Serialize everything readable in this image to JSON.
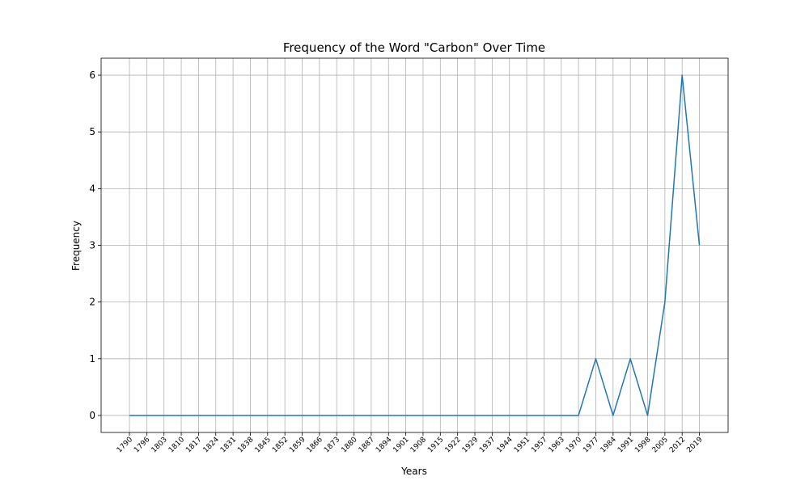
{
  "chart_data": {
    "type": "line",
    "title": "Frequency of the Word \"Carbon\" Over Time",
    "xlabel": "Years",
    "ylabel": "Frequency",
    "x": [
      1790,
      1796,
      1803,
      1810,
      1817,
      1824,
      1831,
      1838,
      1845,
      1852,
      1859,
      1866,
      1873,
      1880,
      1887,
      1894,
      1901,
      1908,
      1915,
      1922,
      1929,
      1937,
      1944,
      1951,
      1957,
      1963,
      1970,
      1977,
      1984,
      1991,
      1998,
      2005,
      2012,
      2019
    ],
    "x_tick_labels": [
      "1790",
      "1796",
      "1803",
      "1810",
      "1817",
      "1824",
      "1831",
      "1838",
      "1845",
      "1852",
      "1859",
      "1866",
      "1873",
      "1880",
      "1887",
      "1894",
      "1901",
      "1908",
      "1915",
      "1922",
      "1929",
      "1937",
      "1944",
      "1951",
      "1957",
      "1963",
      "1970",
      "1977",
      "1984",
      "1991",
      "1998",
      "2005",
      "2012",
      "2019"
    ],
    "values": [
      0,
      0,
      0,
      0,
      0,
      0,
      0,
      0,
      0,
      0,
      0,
      0,
      0,
      0,
      0,
      0,
      0,
      0,
      0,
      0,
      0,
      0,
      0,
      0,
      0,
      0,
      0,
      1,
      0,
      1,
      0,
      2,
      6,
      3
    ],
    "y_ticks": [
      0,
      1,
      2,
      3,
      4,
      5,
      6
    ],
    "ylim": [
      -0.3,
      6.3
    ],
    "grid": true,
    "x_tick_rotation": 45,
    "line_color": "#1f77b4"
  }
}
